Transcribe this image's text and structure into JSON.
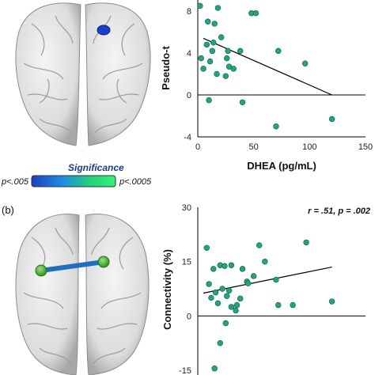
{
  "panel_b_label": "(b)",
  "scale": {
    "title": "Significance",
    "low_label": "p<.005",
    "high_label": "p<.0005",
    "colors": [
      "#1f3fbf",
      "#1e88e5",
      "#22d37a",
      "#35f27a"
    ]
  },
  "colors": {
    "point": "#24a37f",
    "point_stroke": "#0c5a44",
    "line": "#000000",
    "brain": "#e6e6e6",
    "node": "#44c033",
    "edge": "#1e6fc4",
    "blob": "#1b3fcf"
  },
  "chart_data": [
    {
      "type": "scatter",
      "xlabel": "DHEA (pg/mL)",
      "ylabel": "Pseudo-t",
      "xlim": [
        0,
        150
      ],
      "ylim": [
        -4,
        8
      ],
      "x_ticks": [
        0,
        50,
        100,
        150
      ],
      "y_ticks": [
        -4,
        0,
        4,
        8
      ],
      "x": [
        2,
        3,
        5,
        8,
        9,
        10,
        11,
        13,
        14,
        15,
        17,
        18,
        21,
        25,
        26,
        27,
        28,
        32,
        38,
        40,
        48,
        52,
        70,
        72,
        96,
        120
      ],
      "y": [
        8.5,
        3.5,
        2.5,
        4.8,
        7.0,
        -0.5,
        3.2,
        4.2,
        5.0,
        6.8,
        2.0,
        8.3,
        5.5,
        1.8,
        3.5,
        4.2,
        2.7,
        2.5,
        4.2,
        -0.7,
        7.8,
        7.8,
        -3.0,
        4.2,
        3.0,
        -2.3
      ],
      "trendline": {
        "x": [
          5,
          120
        ],
        "y": [
          5.4,
          0.0
        ]
      }
    },
    {
      "type": "scatter",
      "xlabel": "",
      "ylabel": "Connectivity (%)",
      "annotation": "r = .51, p = .002",
      "xlim": [
        0,
        150
      ],
      "ylim": [
        -15,
        30
      ],
      "y_ticks": [
        -15,
        0,
        15,
        30
      ],
      "x": [
        8,
        10,
        12,
        14,
        16,
        18,
        20,
        22,
        24,
        26,
        28,
        30,
        34,
        38,
        40,
        44,
        50,
        55,
        60,
        70,
        72,
        85,
        97,
        120,
        20,
        25,
        35,
        45,
        15,
        30
      ],
      "y": [
        18.8,
        8.8,
        5.0,
        13.0,
        6.5,
        3.5,
        14.0,
        7.5,
        13.8,
        5.5,
        7.0,
        14.0,
        1.5,
        4.8,
        13.0,
        9.5,
        11.0,
        19.5,
        15.0,
        10.0,
        3.0,
        3.0,
        20.3,
        4.0,
        -7.5,
        -2.0,
        3.0,
        9.0,
        -14.5,
        2.5
      ],
      "trendline": {
        "x": [
          5,
          120
        ],
        "y": [
          6.3,
          13.5
        ]
      }
    }
  ]
}
